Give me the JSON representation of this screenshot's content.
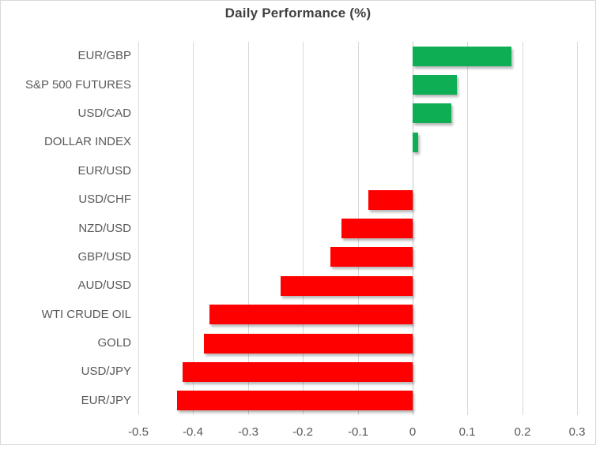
{
  "chart_data": {
    "type": "bar",
    "orientation": "horizontal",
    "title": "Daily Performance (%)",
    "categories": [
      "EUR/GBP",
      "S&P 500 FUTURES",
      "USD/CAD",
      "DOLLAR INDEX",
      "EUR/USD",
      "USD/CHF",
      "NZD/USD",
      "GBP/USD",
      "AUD/USD",
      "WTI CRUDE OIL",
      "GOLD",
      "USD/JPY",
      "EUR/JPY"
    ],
    "values": [
      0.18,
      0.08,
      0.07,
      0.01,
      0.0,
      -0.08,
      -0.13,
      -0.15,
      -0.24,
      -0.37,
      -0.38,
      -0.42,
      -0.43
    ],
    "xlabel": "",
    "ylabel": "",
    "xlim": [
      -0.5,
      0.3
    ],
    "xticks": [
      -0.5,
      -0.4,
      -0.3,
      -0.2,
      -0.1,
      0,
      0.1,
      0.2,
      0.3
    ],
    "xtick_labels": [
      "-0.5",
      "-0.4",
      "-0.3",
      "-0.2",
      "-0.1",
      "0",
      "0.1",
      "0.2",
      "0.3"
    ],
    "grid": "vertical",
    "legend": "none",
    "positive_color": "#0eae54",
    "negative_color": "#ff0000",
    "title_color": "#404040",
    "label_color": "#595959",
    "gridline_color": "#d9d9d9"
  }
}
